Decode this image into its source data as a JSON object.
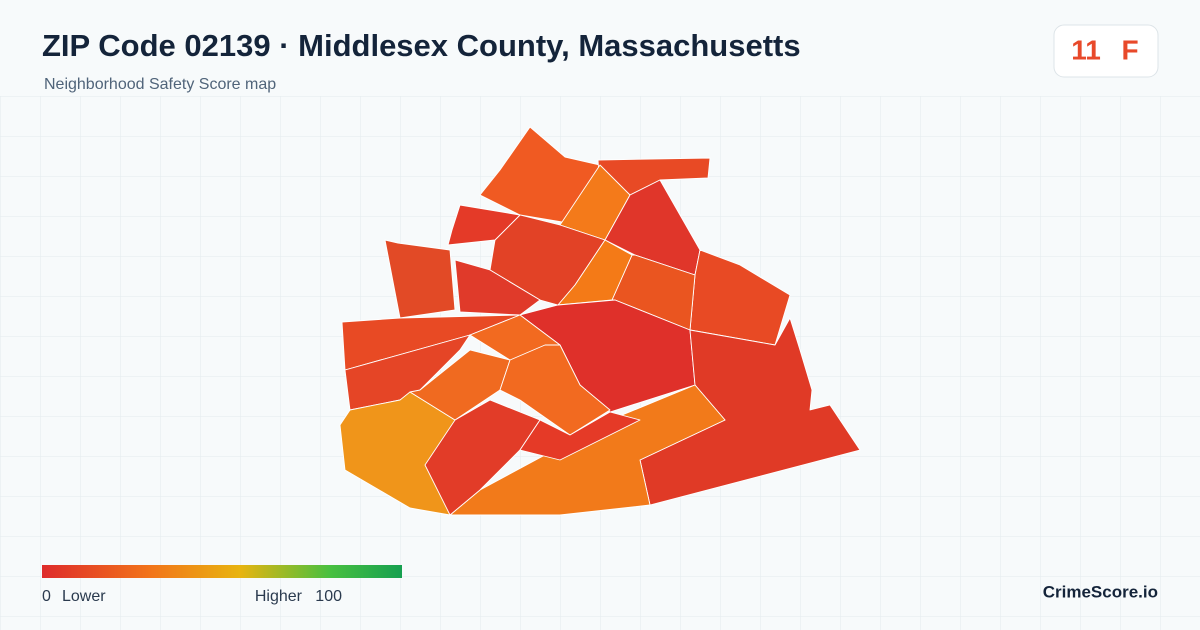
{
  "header": {
    "title": "ZIP Code 02139 · Middlesex County, Massachusetts",
    "subtitle": "Neighborhood Safety Score map"
  },
  "score": {
    "value": "11",
    "grade": "F"
  },
  "legend": {
    "min": "0",
    "min_label": "Lower",
    "max_label": "Higher",
    "max": "100"
  },
  "brand": "CrimeScore.io"
}
